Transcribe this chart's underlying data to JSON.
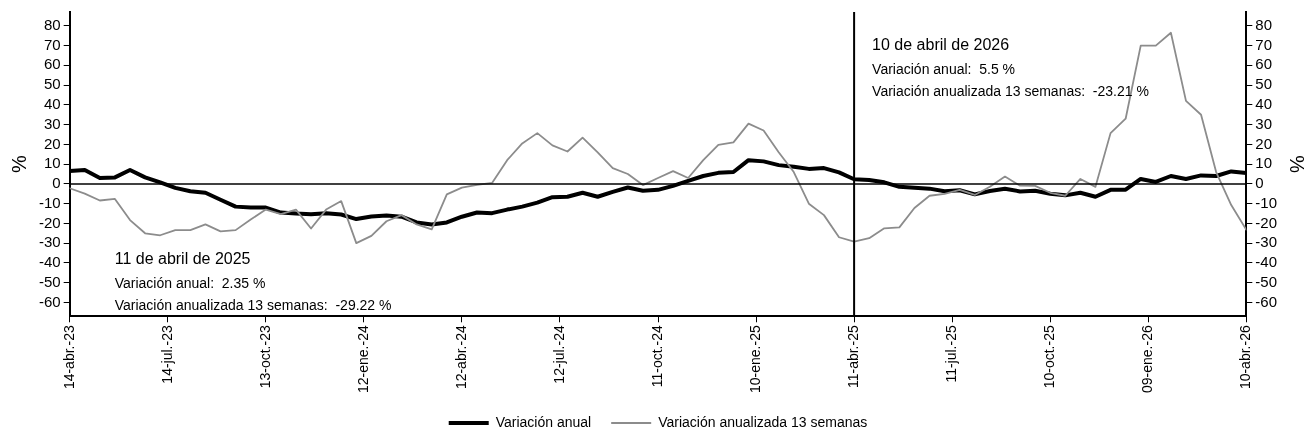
{
  "chart_data": {
    "type": "line",
    "x": [
      "2023-04-14",
      "2023-04-28",
      "2023-05-12",
      "2023-05-26",
      "2023-06-09",
      "2023-06-23",
      "2023-07-07",
      "2023-07-21",
      "2023-08-04",
      "2023-08-18",
      "2023-09-01",
      "2023-09-15",
      "2023-09-29",
      "2023-10-13",
      "2023-10-27",
      "2023-11-10",
      "2023-11-24",
      "2023-12-08",
      "2023-12-22",
      "2024-01-05",
      "2024-01-19",
      "2024-02-02",
      "2024-02-16",
      "2024-03-01",
      "2024-03-15",
      "2024-03-29",
      "2024-04-12",
      "2024-04-26",
      "2024-05-10",
      "2024-05-24",
      "2024-06-07",
      "2024-06-21",
      "2024-07-05",
      "2024-07-19",
      "2024-08-02",
      "2024-08-16",
      "2024-08-30",
      "2024-09-13",
      "2024-09-27",
      "2024-10-11",
      "2024-10-25",
      "2024-11-08",
      "2024-11-22",
      "2024-12-06",
      "2024-12-20",
      "2025-01-03",
      "2025-01-17",
      "2025-01-31",
      "2025-02-14",
      "2025-02-28",
      "2025-03-14",
      "2025-03-28",
      "2025-04-11",
      "2025-04-25",
      "2025-05-09",
      "2025-05-23",
      "2025-06-06",
      "2025-06-20",
      "2025-07-04",
      "2025-07-18",
      "2025-08-01",
      "2025-08-15",
      "2025-08-29",
      "2025-09-12",
      "2025-09-26",
      "2025-10-10",
      "2025-10-24",
      "2025-11-07",
      "2025-11-21",
      "2025-12-05",
      "2025-12-19",
      "2026-01-02",
      "2026-01-16",
      "2026-01-30",
      "2026-02-13",
      "2026-02-27",
      "2026-03-13",
      "2026-03-27",
      "2026-04-10"
    ],
    "series": [
      {
        "name": "Variación anual",
        "color": "#000000",
        "values": [
          6.5,
          7,
          3,
          3.3,
          7,
          3.3,
          0.8,
          -2,
          -3.7,
          -4.5,
          -8,
          -11.5,
          -12,
          -12,
          -14.5,
          -15,
          -15.3,
          -14.8,
          -15.5,
          -17.8,
          -16.5,
          -16,
          -16.6,
          -19.5,
          -20.5,
          -19.5,
          -16.6,
          -14.5,
          -14.8,
          -13,
          -11.5,
          -9.5,
          -6.7,
          -6.5,
          -4.5,
          -6.5,
          -4,
          -1.8,
          -3.5,
          -3,
          -1,
          1.5,
          4,
          5.6,
          6,
          12,
          11.4,
          9.5,
          8.7,
          7.6,
          8,
          5.8,
          2.35,
          2,
          0.8,
          -1.5,
          -1.9,
          -2.4,
          -3.7,
          -3.2,
          -5.3,
          -3.6,
          -2.5,
          -3.8,
          -3.5,
          -5,
          -5.8,
          -4.5,
          -6.5,
          -3,
          -2.9,
          2.5,
          1,
          4,
          2.5,
          4.3,
          4,
          6.3,
          5.5
        ]
      },
      {
        "name": "Variación anualizada 13 semanas",
        "color": "#8c8c8c",
        "values": [
          -2.2,
          -4.9,
          -8.4,
          -7.6,
          -18.3,
          -25,
          -26,
          -23.4,
          -23.4,
          -20.5,
          -24,
          -23.4,
          -18,
          -13,
          -15.3,
          -13,
          -22.6,
          -13,
          -8.7,
          -30,
          -26.3,
          -18.9,
          -15.8,
          -20.5,
          -23,
          -5.3,
          -1.9,
          -0.5,
          0.5,
          12,
          20.5,
          25.7,
          19.5,
          16.4,
          23.4,
          16,
          8,
          5,
          -0.6,
          3,
          6.5,
          3,
          12,
          19.8,
          21,
          30.5,
          27,
          16,
          6,
          -10,
          -15.8,
          -27,
          -29.22,
          -27.5,
          -22.5,
          -22,
          -12.2,
          -6,
          -5,
          -3,
          -5.6,
          -1.4,
          3.7,
          -0.9,
          -1,
          -4.5,
          -6,
          2.5,
          -1.5,
          25.7,
          33,
          70,
          70,
          76.5,
          42,
          35,
          6,
          -10.7,
          -23.21
        ]
      }
    ],
    "xlim": [
      "2023-04-14",
      "2026-04-10"
    ],
    "xticks": [
      {
        "value": "2023-04-14",
        "label": "14-abr.-23"
      },
      {
        "value": "2023-07-14",
        "label": "14-jul.-23"
      },
      {
        "value": "2023-10-13",
        "label": "13-oct.-23"
      },
      {
        "value": "2024-01-12",
        "label": "12-ene.-24"
      },
      {
        "value": "2024-04-12",
        "label": "12-abr.-24"
      },
      {
        "value": "2024-07-12",
        "label": "12-jul.-24"
      },
      {
        "value": "2024-10-11",
        "label": "11-oct.-24"
      },
      {
        "value": "2025-01-10",
        "label": "10-ene.-25"
      },
      {
        "value": "2025-04-11",
        "label": "11-abr.-25"
      },
      {
        "value": "2025-07-11",
        "label": "11-jul.-25"
      },
      {
        "value": "2025-10-10",
        "label": "10-oct.-25"
      },
      {
        "value": "2026-01-09",
        "label": "09-ene.-26"
      },
      {
        "value": "2026-04-10",
        "label": "10-abr.-26"
      }
    ],
    "ylim": [
      -67,
      87
    ],
    "yticks": [
      -60,
      -50,
      -40,
      -30,
      -20,
      -10,
      0,
      10,
      20,
      30,
      40,
      50,
      60,
      70,
      80
    ],
    "y2lim": [
      -67,
      87
    ],
    "y2ticks": [
      -60,
      -50,
      -40,
      -30,
      -20,
      -10,
      0,
      10,
      20,
      30,
      40,
      50,
      60,
      70,
      80
    ],
    "ylabel": "%",
    "y2label": "%",
    "ref_lines": [
      {
        "axis": "x",
        "value": "2025-04-11",
        "color": "#000000"
      },
      {
        "axis": "y",
        "value": 0,
        "color": "#000000"
      }
    ],
    "annotations": [
      "11 de abril de 2025",
      "Variación anual:  2.35 %",
      "Variación anualizada 13 semanas:  -29.22 %",
      "10 de abril de 2026",
      "Variación anual:  5.5 %",
      "Variación anualizada 13 semanas:  -23.21 %"
    ],
    "legend": "bottom",
    "grid": false,
    "marker": "none",
    "line_style": "solid"
  }
}
